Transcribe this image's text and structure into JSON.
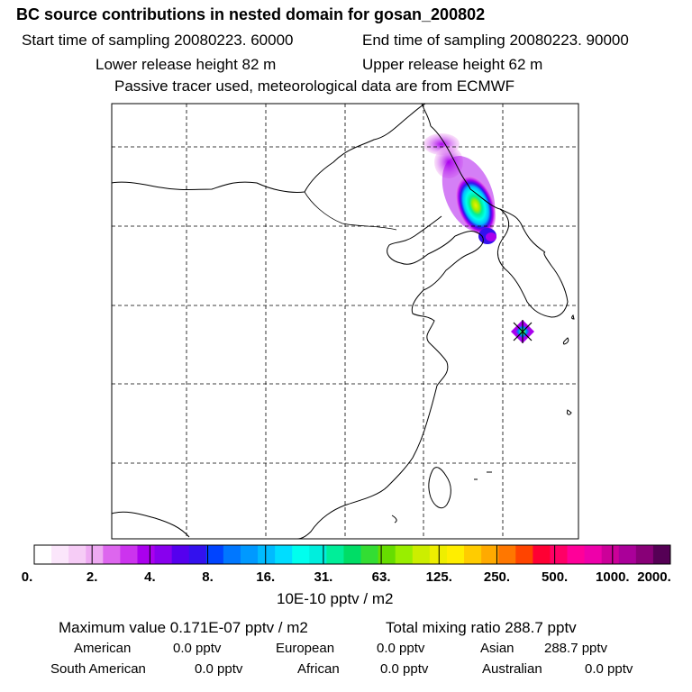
{
  "header": {
    "title": "BC  source contributions in nested domain for gosan_200802",
    "start_label": "Start time of sampling 20080223. 60000",
    "end_label": "End time of sampling 20080223. 90000",
    "lower_release": "Lower release height   82 m",
    "upper_release": "Upper release height   62 m",
    "tracer_note": "Passive tracer used, meteorological data are from ECMWF"
  },
  "chart_data": {
    "type": "heatmap",
    "title": "BC  source contributions in nested domain for gosan_200802",
    "colorbar": {
      "unit": "10E-10 pptv / m2",
      "tick_labels": [
        "0.",
        "2.",
        "4.",
        "8.",
        "16.",
        "31.",
        "63.",
        "125.",
        "250.",
        "500.",
        "1000.",
        "2000."
      ],
      "colors": [
        "#ffffff",
        "#fbe6fb",
        "#f6ccf6",
        "#eeaaf2",
        "#dd66ee",
        "#cc33ee",
        "#aa00ee",
        "#8800ee",
        "#5500ee",
        "#3311ee",
        "#0044ff",
        "#0077ff",
        "#0099ff",
        "#00bbff",
        "#00ddff",
        "#00ffee",
        "#00eedd",
        "#00ee99",
        "#00dd66",
        "#33dd33",
        "#66dd00",
        "#99ee00",
        "#ccee00",
        "#eeee00",
        "#ffee00",
        "#ffcc00",
        "#ffaa00",
        "#ff7700",
        "#ff4400",
        "#ff0033",
        "#ff0066",
        "#ff0099",
        "#ee00aa",
        "#cc0099",
        "#aa0099",
        "#880077",
        "#550055"
      ]
    },
    "grid": true,
    "plumes": [
      {
        "name": "northeast-china-plume",
        "max_level": "63."
      },
      {
        "name": "receptor-gosan",
        "max_level": "63."
      }
    ]
  },
  "stats": {
    "maximum": "Maximum value  0.171E-07 pptv / m2",
    "total": "Total mixing ratio     288.7 pptv"
  },
  "sources": [
    {
      "label": "American",
      "value": "0.0 pptv"
    },
    {
      "label": "European",
      "value": "0.0 pptv"
    },
    {
      "label": "Asian",
      "value": "288.7 pptv"
    },
    {
      "label": "South American",
      "value": "0.0 pptv"
    },
    {
      "label": "African",
      "value": "0.0 pptv"
    },
    {
      "label": "Australian",
      "value": "0.0 pptv"
    }
  ]
}
